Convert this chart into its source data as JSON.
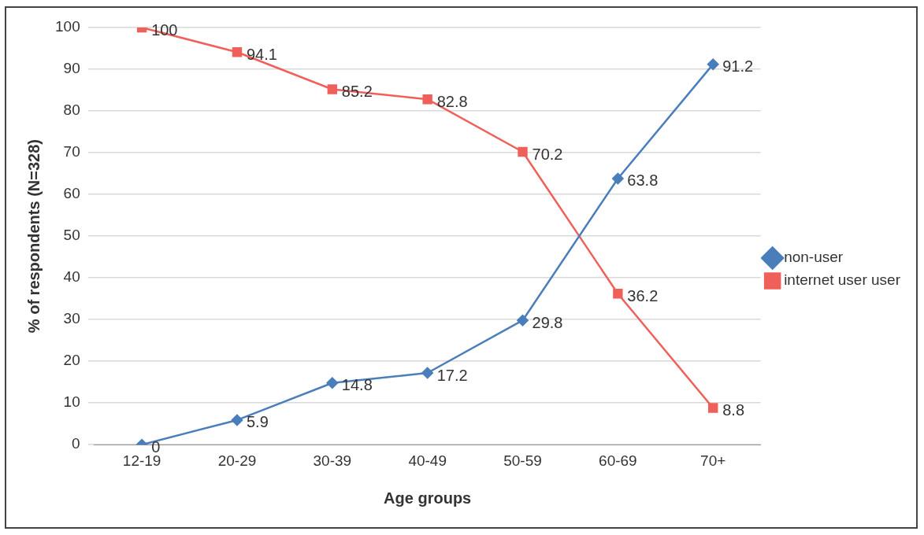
{
  "chart_data": {
    "type": "line",
    "xlabel": "Age groups",
    "ylabel": "% of respondents (N=328)",
    "categories": [
      "12-19",
      "20-29",
      "30-39",
      "40-49",
      "50-59",
      "60-69",
      "70+"
    ],
    "series": [
      {
        "name": "non-user",
        "color": "#4a7ebb",
        "marker": "diamond",
        "values": [
          0,
          5.9,
          14.8,
          17.2,
          29.8,
          63.8,
          91.2
        ]
      },
      {
        "name": "internet user user",
        "color": "#f0605a",
        "marker": "square",
        "values": [
          100,
          94.1,
          85.2,
          82.8,
          70.2,
          36.2,
          8.8
        ]
      }
    ],
    "ylim": [
      0,
      100
    ],
    "yticks": [
      0,
      10,
      20,
      30,
      40,
      50,
      60,
      70,
      80,
      90,
      100
    ],
    "grid": "y",
    "legend": "right",
    "data_labels": true,
    "line_style": "solid"
  }
}
